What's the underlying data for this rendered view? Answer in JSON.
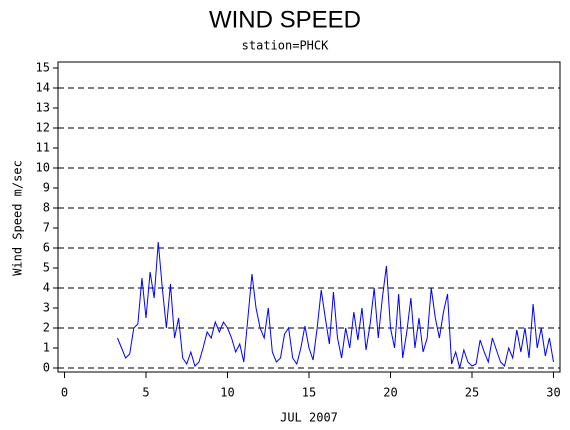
{
  "chart_data": {
    "type": "line",
    "title": "WIND SPEED",
    "subtitle": "station=PHCK",
    "y_label": "Wind Speed m/sec",
    "x_label": "JUL 2007",
    "xlim": [
      -0.4,
      30.4
    ],
    "xticks": [
      0,
      5,
      10,
      15,
      20,
      25,
      30
    ],
    "ylim": [
      -0.2,
      15.3
    ],
    "yticks": [
      0,
      1,
      2,
      3,
      4,
      5,
      6,
      7,
      8,
      9,
      10,
      11,
      12,
      13,
      14,
      15
    ],
    "ygrid": [
      0,
      2,
      4,
      6,
      8,
      10,
      12,
      14
    ],
    "x": [
      3.25,
      3.5,
      3.75,
      4,
      4.25,
      4.5,
      4.75,
      5,
      5.25,
      5.5,
      5.75,
      6,
      6.25,
      6.5,
      6.75,
      7,
      7.25,
      7.5,
      7.75,
      8,
      8.25,
      8.5,
      8.75,
      9,
      9.25,
      9.5,
      9.75,
      10,
      10.25,
      10.5,
      10.75,
      11,
      11.25,
      11.5,
      11.75,
      12,
      12.25,
      12.5,
      12.75,
      13,
      13.25,
      13.5,
      13.75,
      14,
      14.25,
      14.5,
      14.75,
      15,
      15.25,
      15.5,
      15.75,
      16,
      16.25,
      16.5,
      16.75,
      17,
      17.25,
      17.5,
      17.75,
      18,
      18.25,
      18.5,
      18.75,
      19,
      19.25,
      19.5,
      19.75,
      20,
      20.25,
      20.5,
      20.75,
      21,
      21.25,
      21.5,
      21.75,
      22,
      22.25,
      22.5,
      22.75,
      23,
      23.25,
      23.5,
      23.75,
      24,
      24.25,
      24.5,
      24.75,
      25,
      25.25,
      25.5,
      25.75,
      26,
      26.25,
      26.5,
      26.75,
      27,
      27.25,
      27.5,
      27.75,
      28,
      28.25,
      28.5,
      28.75,
      29,
      29.25,
      29.5,
      29.75,
      30
    ],
    "series": [
      {
        "name": "Wind Speed",
        "color": "#0000ff",
        "values": [
          1.5,
          1.0,
          0.5,
          0.7,
          2.0,
          2.2,
          4.5,
          2.5,
          4.8,
          3.5,
          6.3,
          4.0,
          2.0,
          4.2,
          1.5,
          2.5,
          0.5,
          0.2,
          0.8,
          0.1,
          0.3,
          1.0,
          1.8,
          1.5,
          2.3,
          1.8,
          2.3,
          2.0,
          1.5,
          0.8,
          1.2,
          0.3,
          2.5,
          4.7,
          3.0,
          2.0,
          1.5,
          3.0,
          0.8,
          0.3,
          0.5,
          1.7,
          2.0,
          0.5,
          0.2,
          1.0,
          2.1,
          1.0,
          0.4,
          2.0,
          3.9,
          2.5,
          1.2,
          3.8,
          1.5,
          0.5,
          2.0,
          1.0,
          2.8,
          1.4,
          3.0,
          0.9,
          2.2,
          4.0,
          1.5,
          3.5,
          5.1,
          2.0,
          1.0,
          3.7,
          0.5,
          1.8,
          3.5,
          1.0,
          2.5,
          0.8,
          1.5,
          4.0,
          2.5,
          1.5,
          2.8,
          3.7,
          0.2,
          0.8,
          0.0,
          0.9,
          0.3,
          0.1,
          0.2,
          1.4,
          0.8,
          0.3,
          1.5,
          0.9,
          0.3,
          0.1,
          1.0,
          0.5,
          1.9,
          0.8,
          2.0,
          0.5,
          3.2,
          1.0,
          2.0,
          0.6,
          1.5,
          0.3
        ]
      }
    ]
  }
}
